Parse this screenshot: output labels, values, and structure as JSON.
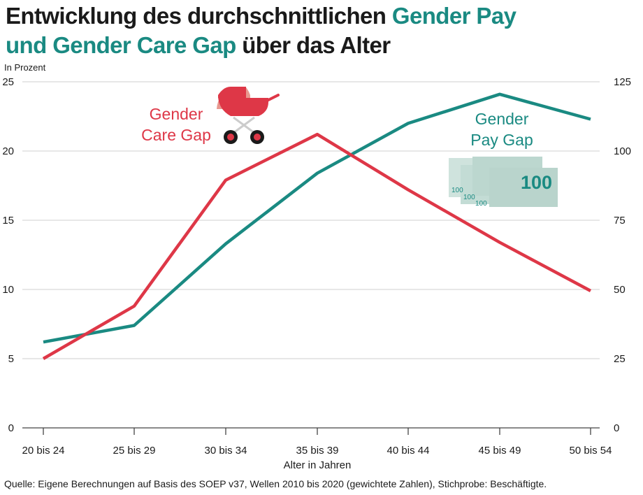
{
  "title": {
    "part1": "Entwicklung des durchschnittlichen ",
    "part2": "Gender Pay",
    "part3": "und Gender Care Gap",
    "part4": " über das Alter"
  },
  "source": "Quelle: Eigene Berechnungen auf Basis des SOEP v37, Wellen 2010 bis 2020 (gewichtete Zahlen), Stichprobe: Beschäftigte.",
  "colors": {
    "pay": "#1a8a82",
    "care": "#de3747",
    "grid": "#cfcfcf",
    "text": "#1a1a1a"
  },
  "icons": {
    "care": "baby-carriage-icon",
    "pay": "banknotes-icon"
  },
  "chart_data": {
    "type": "line",
    "unit_label": "In Prozent",
    "xlabel": "Alter in Jahren",
    "categories": [
      "20 bis 24",
      "25 bis 29",
      "30 bis 34",
      "35 bis 39",
      "40 bis 44",
      "45 bis 49",
      "50 bis 54"
    ],
    "left_axis": {
      "ylim": [
        0,
        25
      ],
      "ticks": [
        0,
        5,
        10,
        15,
        20,
        25
      ],
      "tick_labels": [
        "0",
        "5",
        "10",
        "15",
        "20",
        "25"
      ]
    },
    "right_axis": {
      "ylim": [
        0,
        125
      ],
      "ticks": [
        0,
        25,
        50,
        75,
        100,
        125
      ],
      "tick_labels": [
        "0",
        "25",
        "50",
        "75",
        "100",
        "125"
      ]
    },
    "grid": true,
    "series": [
      {
        "name": "Gender Pay Gap",
        "label_lines": [
          "Gender",
          "Pay Gap"
        ],
        "axis": "left",
        "color": "#1a8a82",
        "values": [
          6.2,
          7.4,
          13.3,
          18.4,
          22.0,
          24.1,
          22.3
        ]
      },
      {
        "name": "Gender Care Gap",
        "label_lines": [
          "Gender",
          "Care Gap"
        ],
        "axis": "right",
        "color": "#de3747",
        "values": [
          25,
          44,
          89.5,
          106,
          86,
          67,
          49.5
        ]
      }
    ],
    "banknote_text": [
      "100",
      "100",
      "100",
      "100"
    ]
  }
}
